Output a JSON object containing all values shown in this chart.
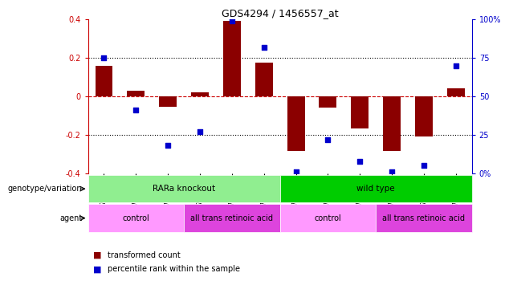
{
  "title": "GDS4294 / 1456557_at",
  "samples": [
    "GSM775291",
    "GSM775295",
    "GSM775299",
    "GSM775292",
    "GSM775296",
    "GSM775300",
    "GSM775293",
    "GSM775297",
    "GSM775301",
    "GSM775294",
    "GSM775298",
    "GSM775302"
  ],
  "bar_values": [
    0.16,
    0.03,
    -0.055,
    0.02,
    0.39,
    0.175,
    -0.285,
    -0.06,
    -0.165,
    -0.285,
    -0.21,
    0.04
  ],
  "dot_values_pct": [
    75,
    41,
    18,
    27,
    99,
    82,
    1,
    22,
    8,
    1,
    5,
    70
  ],
  "bar_color": "#8B0000",
  "dot_color": "#0000CC",
  "ylim": [
    -0.4,
    0.4
  ],
  "yticks_left": [
    -0.4,
    -0.2,
    0.0,
    0.2,
    0.4
  ],
  "ytick_labels_left": [
    "-0.4",
    "-0.2",
    "0",
    "0.2",
    "0.4"
  ],
  "yticks_right": [
    0,
    25,
    50,
    75,
    100
  ],
  "ytick_labels_right": [
    "0%",
    "25",
    "50",
    "75",
    "100%"
  ],
  "zero_line_color": "#CC0000",
  "grid_color": "#000000",
  "genotype_groups": [
    {
      "label": "RARa knockout",
      "start": 0,
      "end": 5,
      "color": "#90EE90"
    },
    {
      "label": "wild type",
      "start": 6,
      "end": 11,
      "color": "#00CC00"
    }
  ],
  "agent_groups": [
    {
      "label": "control",
      "start": 0,
      "end": 2,
      "color": "#FF99FF"
    },
    {
      "label": "all trans retinoic acid",
      "start": 3,
      "end": 5,
      "color": "#DD44DD"
    },
    {
      "label": "control",
      "start": 6,
      "end": 8,
      "color": "#FF99FF"
    },
    {
      "label": "all trans retinoic acid",
      "start": 9,
      "end": 11,
      "color": "#DD44DD"
    }
  ],
  "row_labels": [
    "genotype/variation",
    "agent"
  ],
  "legend_bar_label": "transformed count",
  "legend_dot_label": "percentile rank within the sample",
  "background_color": "#FFFFFF",
  "title_color": "#000000",
  "left_axis_color": "#CC0000",
  "right_axis_color": "#0000CC"
}
